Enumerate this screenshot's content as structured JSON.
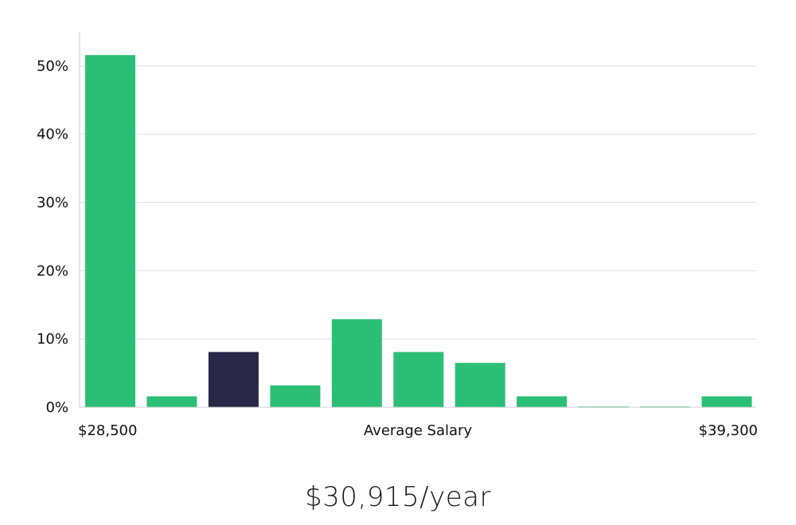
{
  "chart_data": {
    "type": "bar",
    "title": "",
    "xlabel": "Average Salary",
    "ylabel": "",
    "x_min_label": "$28,500",
    "x_max_label": "$39,300",
    "ylim": [
      0,
      55
    ],
    "y_ticks": [
      0,
      10,
      20,
      30,
      40,
      50
    ],
    "y_tick_labels": [
      "0%",
      "10%",
      "20%",
      "30%",
      "40%",
      "50%"
    ],
    "values": [
      51.6,
      1.6,
      8.1,
      3.2,
      12.9,
      8.1,
      6.5,
      1.6,
      0.1,
      0.1,
      1.6
    ],
    "highlight_index": 2,
    "colors": {
      "bar": "#2bbf76",
      "highlight": "#2a2647",
      "grid": "#dddddd",
      "axis": "#cccccc"
    }
  },
  "summary": {
    "salary": "$30,915/year"
  }
}
